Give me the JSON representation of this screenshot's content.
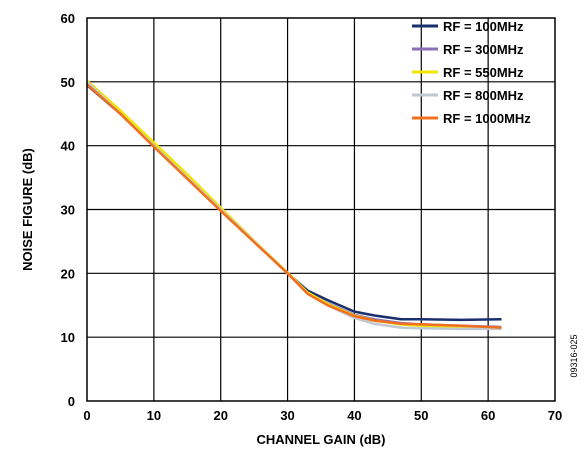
{
  "chart_data": {
    "type": "line",
    "title": "",
    "xlabel": "CHANNEL GAIN (dB)",
    "ylabel": "NOISE FIGURE (dB)",
    "xlim": [
      0,
      70
    ],
    "ylim": [
      0,
      60
    ],
    "xticks": [
      0,
      10,
      20,
      30,
      40,
      50,
      60,
      70
    ],
    "yticks": [
      0,
      10,
      20,
      30,
      40,
      50,
      60
    ],
    "grid": true,
    "legend_position": "top-right",
    "figure_id": "09316-025",
    "series": [
      {
        "name": "RF = 100MHz",
        "color": "#1a2f6e",
        "x": [
          0,
          5,
          10,
          15,
          20,
          25,
          30,
          33,
          36,
          40,
          43,
          47,
          50,
          56,
          62
        ],
        "y": [
          49.5,
          45,
          40,
          35,
          30,
          25,
          20,
          17.3,
          15.8,
          14,
          13.4,
          12.8,
          12.8,
          12.7,
          12.8
        ]
      },
      {
        "name": "RF = 300MHz",
        "color": "#8a6fb5",
        "x": [
          0,
          5,
          10,
          15,
          20,
          25,
          30,
          33,
          36,
          40,
          43,
          47,
          50,
          56,
          62
        ],
        "y": [
          49.8,
          45,
          40,
          35,
          30,
          25,
          20,
          17,
          15.3,
          13.5,
          12.8,
          12.2,
          12,
          11.8,
          11.6
        ]
      },
      {
        "name": "RF = 550MHz",
        "color": "#f2e600",
        "x": [
          0,
          5,
          10,
          15,
          20,
          25,
          30,
          33,
          36,
          40,
          43,
          47,
          50,
          56,
          62
        ],
        "y": [
          50.2,
          45.5,
          40.5,
          35.5,
          30.3,
          25.1,
          20.1,
          17,
          15.2,
          13.4,
          12.6,
          12,
          11.8,
          11.6,
          11.4
        ]
      },
      {
        "name": "RF = 800MHz",
        "color": "#c0c8d2",
        "x": [
          0,
          5,
          10,
          15,
          20,
          25,
          30,
          33,
          36,
          40,
          43,
          47,
          50,
          56,
          62
        ],
        "y": [
          50,
          45,
          40,
          35,
          30,
          25,
          20,
          16.8,
          15,
          13,
          12.1,
          11.5,
          11.4,
          11.3,
          11.3
        ]
      },
      {
        "name": "RF = 1000MHz",
        "color": "#f07020",
        "x": [
          0,
          5,
          10,
          15,
          20,
          25,
          30,
          33,
          36,
          40,
          43,
          47,
          50,
          56,
          62
        ],
        "y": [
          49.6,
          45,
          39.8,
          34.8,
          29.8,
          24.9,
          20,
          16.8,
          15,
          13.3,
          12.6,
          12.1,
          12,
          11.8,
          11.5
        ]
      }
    ]
  }
}
